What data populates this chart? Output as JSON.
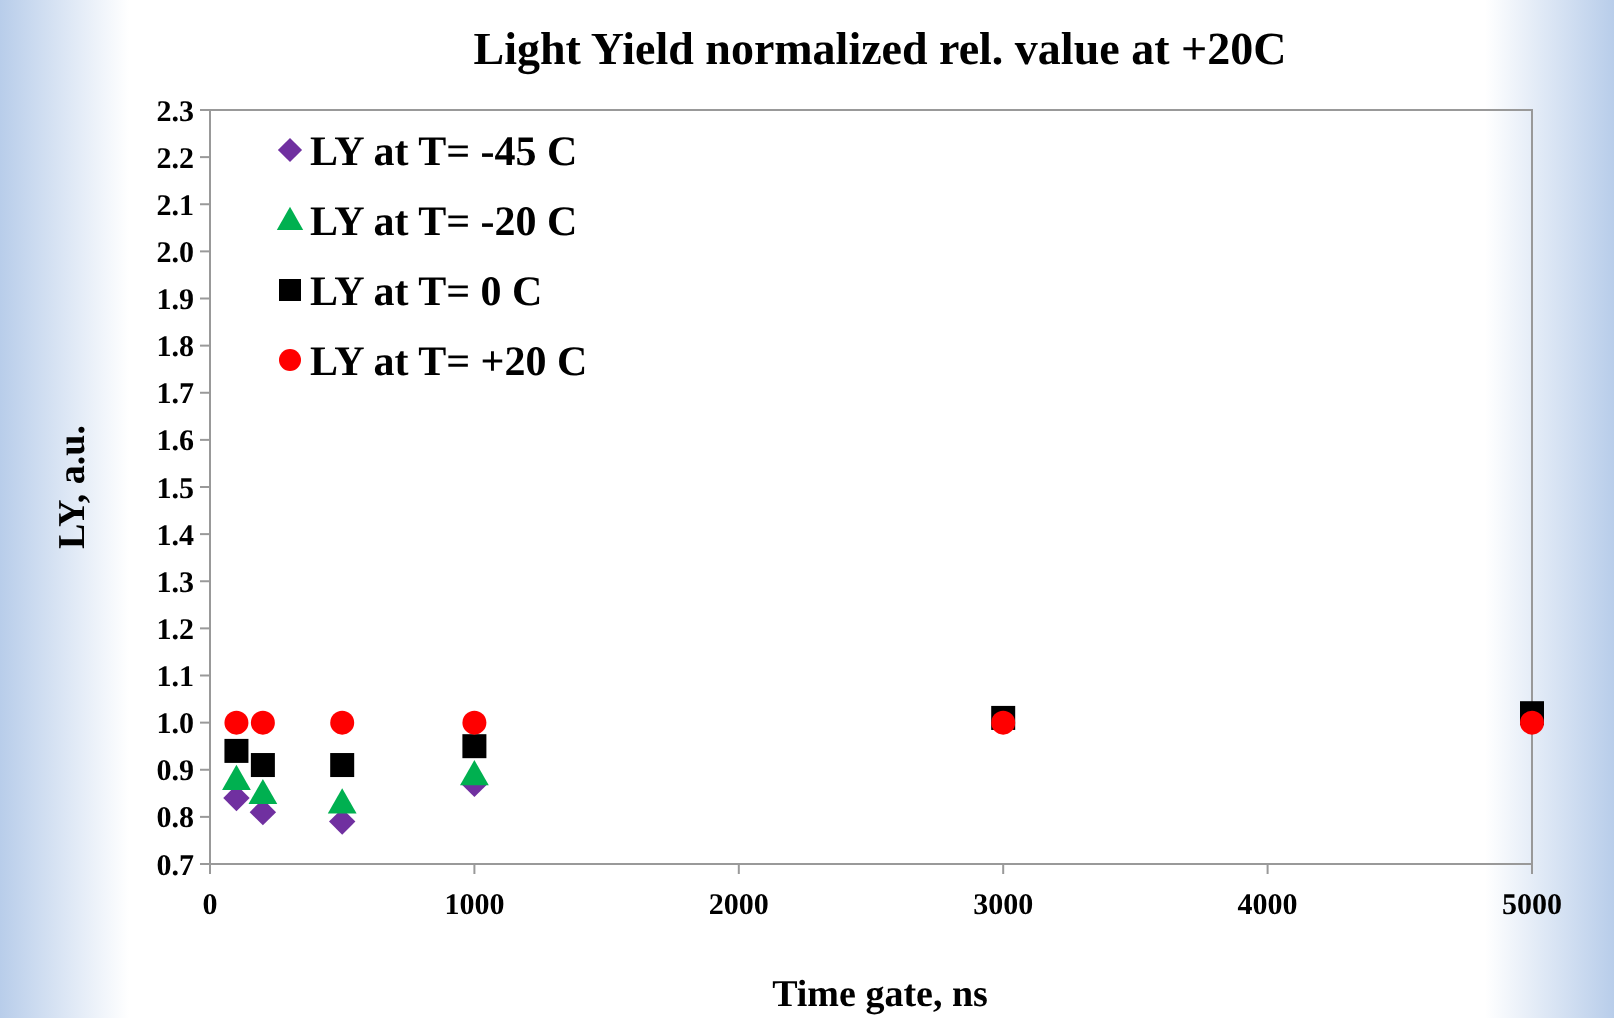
{
  "chart_data": {
    "type": "scatter",
    "title": "Light Yield normalized  rel. value at +20C",
    "xlabel": "Time gate, ns",
    "ylabel": "LY, a.u.",
    "x": [
      100,
      200,
      500,
      1000,
      3000,
      5000
    ],
    "series": [
      {
        "name": "LY at T= -45 C",
        "color": "#7030a0",
        "marker": "diamond",
        "values": [
          0.84,
          0.81,
          0.79,
          0.87,
          null,
          null
        ]
      },
      {
        "name": "LY at T= -20 C",
        "color": "#00b050",
        "marker": "triangle",
        "values": [
          0.88,
          0.85,
          0.83,
          0.89,
          null,
          null
        ]
      },
      {
        "name": "LY at T= 0 C",
        "color": "#000000",
        "marker": "square",
        "values": [
          0.94,
          0.91,
          0.91,
          0.95,
          1.01,
          1.02
        ]
      },
      {
        "name": "LY at T= +20 C",
        "color": "#ff0000",
        "marker": "circle",
        "values": [
          1.0,
          1.0,
          1.0,
          1.0,
          1.0,
          1.0
        ]
      }
    ],
    "xlim": [
      0,
      5000
    ],
    "xticks": [
      0,
      1000,
      2000,
      3000,
      4000,
      5000
    ],
    "ylim": [
      0.7,
      2.3
    ],
    "yticks": [
      {
        "value": 0.7,
        "label": "0.7"
      },
      {
        "value": 0.8,
        "label": "0.8"
      },
      {
        "value": 0.9,
        "label": "0.9"
      },
      {
        "value": 1.0,
        "label": "1.0"
      },
      {
        "value": 1.1,
        "label": "1.1"
      },
      {
        "value": 1.2,
        "label": "1.2"
      },
      {
        "value": 1.3,
        "label": "1.3"
      },
      {
        "value": 1.4,
        "label": "1.4"
      },
      {
        "value": 1.5,
        "label": "1.5"
      },
      {
        "value": 1.6,
        "label": "1.6"
      },
      {
        "value": 1.7,
        "label": "1.7"
      },
      {
        "value": 1.8,
        "label": "1.8"
      },
      {
        "value": 1.9,
        "label": "1.9"
      },
      {
        "value": 2.0,
        "label": "2.0"
      },
      {
        "value": 2.1,
        "label": "2.1"
      },
      {
        "value": 2.2,
        "label": "2.2"
      },
      {
        "value": 2.3,
        "label": "2.3"
      }
    ],
    "legend": "top left",
    "grid": false
  }
}
